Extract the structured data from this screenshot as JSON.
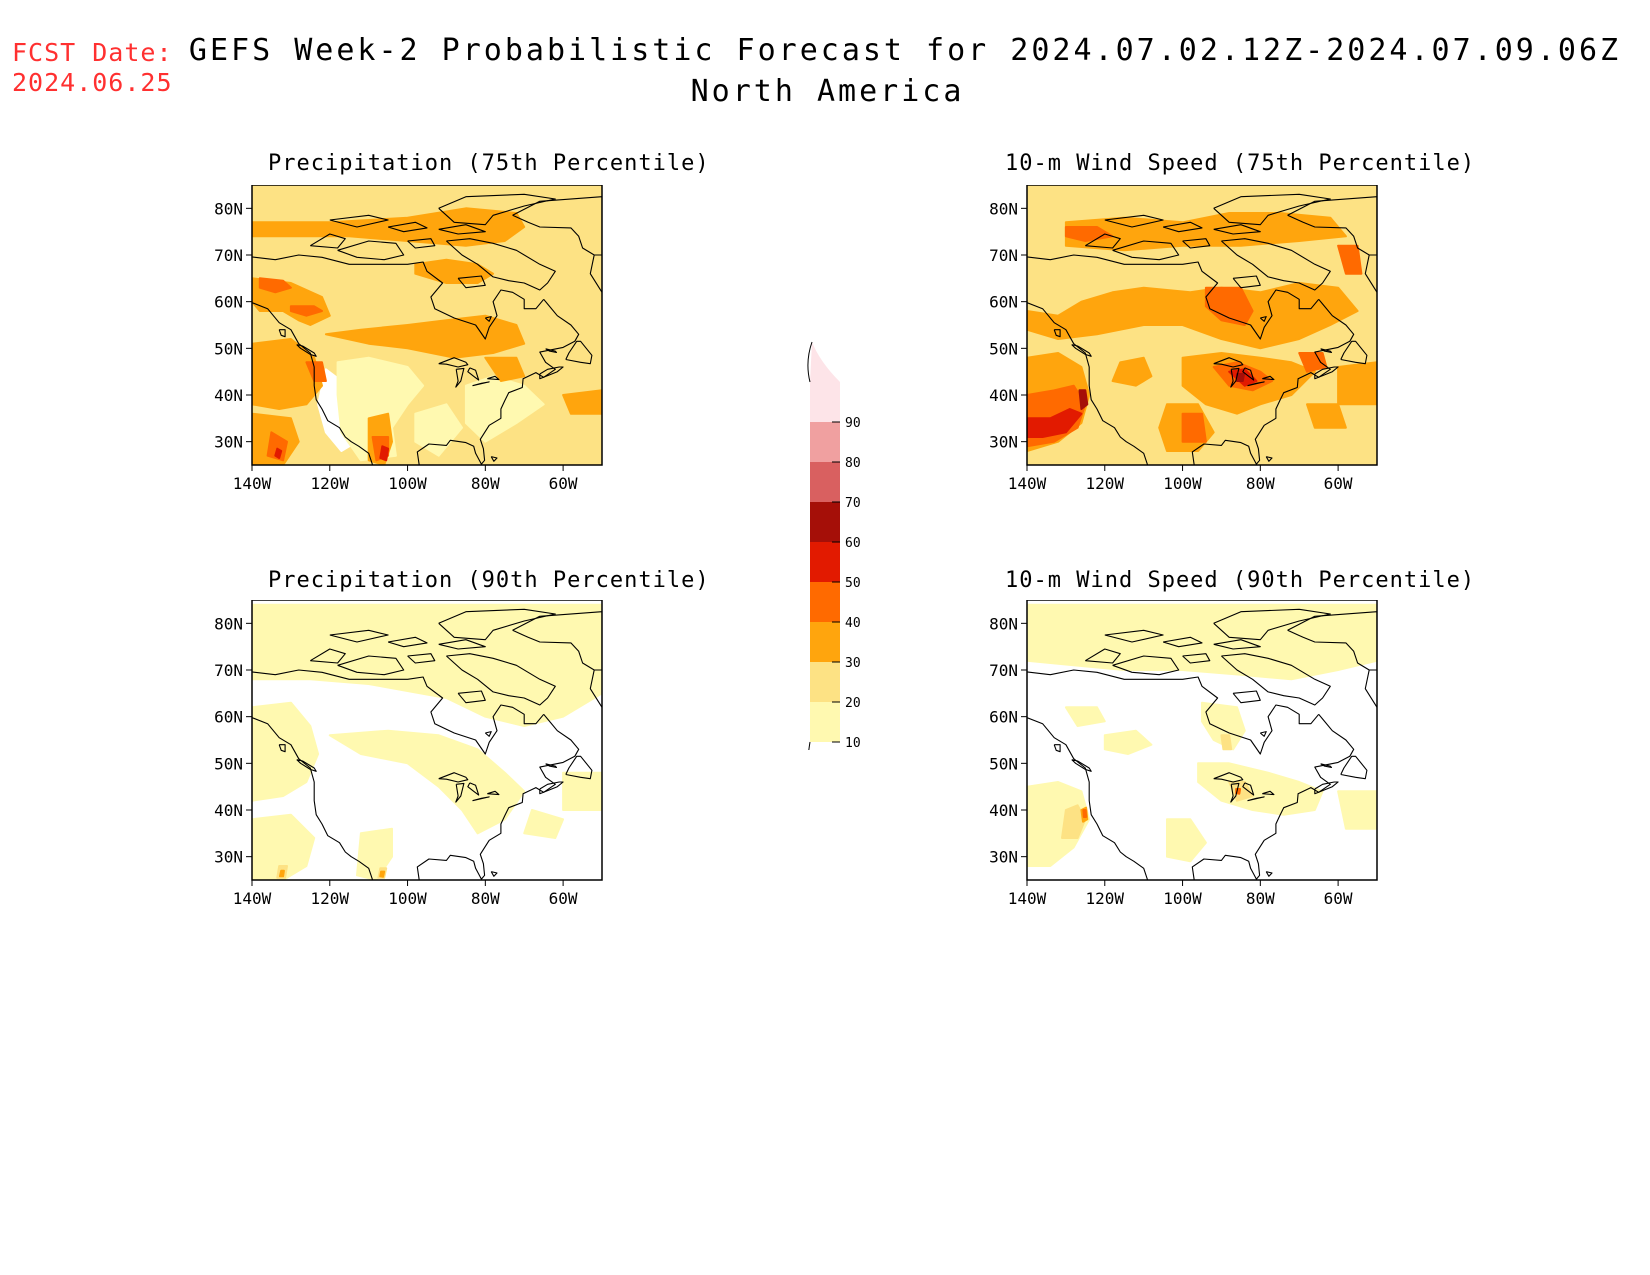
{
  "fcst_date": {
    "label": "FCST Date:",
    "value": "2024.06.25"
  },
  "title": {
    "main": "GEFS Week-2 Probabilistic Forecast for 2024.07.02.12Z-2024.07.09.06Z",
    "region": "North America"
  },
  "colorbar": {
    "levels": [
      "10",
      "20",
      "30",
      "40",
      "50",
      "60",
      "70",
      "80",
      "90"
    ],
    "colors": [
      "#fff9b0",
      "#fde284",
      "#ffa50d",
      "#ff6a00",
      "#e21a00",
      "#a50f08",
      "#d96060",
      "#f0a0a0",
      "#fde4e8"
    ]
  },
  "panels": [
    {
      "title": "Precipitation (75th Percentile)",
      "xticks": [
        "140W",
        "120W",
        "100W",
        "80W",
        "60W"
      ],
      "yticks": [
        "30N",
        "40N",
        "50N",
        "60N",
        "70N",
        "80N"
      ]
    },
    {
      "title": "10-m Wind Speed (75th Percentile)",
      "xticks": [
        "140W",
        "120W",
        "100W",
        "80W",
        "60W"
      ],
      "yticks": [
        "30N",
        "40N",
        "50N",
        "60N",
        "70N",
        "80N"
      ]
    },
    {
      "title": "Precipitation (90th Percentile)",
      "xticks": [
        "140W",
        "120W",
        "100W",
        "80W",
        "60W"
      ],
      "yticks": [
        "30N",
        "40N",
        "50N",
        "60N",
        "70N",
        "80N"
      ]
    },
    {
      "title": "10-m Wind Speed (90th Percentile)",
      "xticks": [
        "140W",
        "120W",
        "100W",
        "80W",
        "60W"
      ],
      "yticks": [
        "30N",
        "40N",
        "50N",
        "60N",
        "70N",
        "80N"
      ]
    }
  ]
}
